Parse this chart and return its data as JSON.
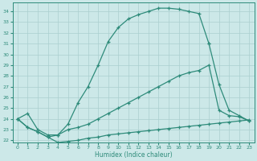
{
  "xlabel": "Humidex (Indice chaleur)",
  "line_color": "#2e8b7a",
  "bg_color": "#cce8e8",
  "grid_color": "#aacfcf",
  "ylim": [
    21.8,
    34.8
  ],
  "xlim": [
    -0.5,
    23.5
  ],
  "yticks": [
    22,
    23,
    24,
    25,
    26,
    27,
    28,
    29,
    30,
    31,
    32,
    33,
    34
  ],
  "xticks": [
    0,
    1,
    2,
    3,
    4,
    5,
    6,
    7,
    8,
    9,
    10,
    11,
    12,
    13,
    14,
    15,
    16,
    17,
    18,
    19,
    20,
    21,
    22,
    23
  ],
  "curve_main_x": [
    0,
    1,
    2,
    3,
    4,
    5,
    6,
    7,
    8,
    9,
    10,
    11,
    12,
    13,
    14,
    15,
    16,
    17,
    18,
    19
  ],
  "curve_main_y": [
    24.0,
    24.5,
    23.0,
    22.5,
    22.5,
    23.5,
    25.5,
    27.0,
    29.0,
    31.2,
    32.5,
    33.3,
    33.7,
    34.0,
    34.3,
    34.3,
    34.2,
    34.0,
    33.8,
    31.0
  ],
  "curve_right_x": [
    19,
    20,
    21,
    22,
    23
  ],
  "curve_right_y": [
    31.0,
    27.2,
    24.8,
    24.3,
    23.8
  ],
  "curve_diag_x": [
    0,
    1,
    2,
    3,
    4,
    5,
    6,
    7,
    8,
    9,
    10,
    11,
    12,
    13,
    14,
    15,
    16,
    17,
    18,
    19,
    20,
    21,
    22,
    23
  ],
  "curve_diag_y": [
    24.0,
    23.2,
    22.8,
    22.3,
    22.5,
    23.0,
    23.2,
    23.5,
    24.0,
    24.5,
    25.0,
    25.5,
    26.0,
    26.5,
    27.0,
    27.5,
    28.0,
    28.3,
    28.5,
    29.0,
    24.8,
    24.3,
    24.2,
    23.8
  ],
  "curve_flat_x": [
    0,
    1,
    2,
    3,
    4,
    5,
    6,
    7,
    8,
    9,
    10,
    11,
    12,
    13,
    14,
    15,
    16,
    17,
    18,
    19,
    20,
    21,
    22,
    23
  ],
  "curve_flat_y": [
    24.0,
    23.2,
    22.8,
    22.3,
    21.8,
    21.9,
    22.0,
    22.2,
    22.3,
    22.5,
    22.6,
    22.7,
    22.8,
    22.9,
    23.0,
    23.1,
    23.2,
    23.3,
    23.4,
    23.5,
    23.6,
    23.7,
    23.8,
    23.9
  ]
}
